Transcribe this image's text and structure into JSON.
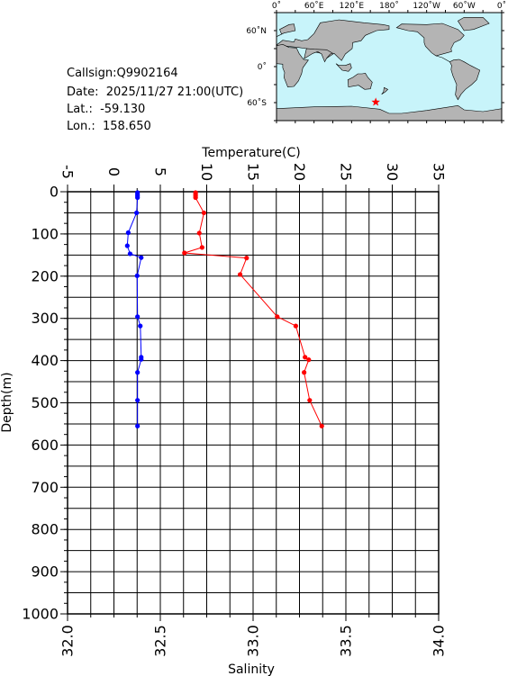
{
  "info": {
    "callsign": "Callsign:Q9902164",
    "date": "Date:  2025/11/27 21:00(UTC)",
    "lat": "Lat.:  -59.130",
    "lon": "Lon.:  158.650"
  },
  "map": {
    "lon_labels": [
      "0˚",
      "60˚E",
      "120˚E",
      "180˚",
      "120˚W",
      "60˚W",
      "0˚"
    ],
    "lat_labels": [
      "60˚N",
      "0˚",
      "60˚S"
    ],
    "ocean_color": "#c8f4fa",
    "land_color": "#b4b4b4",
    "marker": {
      "lon": 158.65,
      "lat": -59.13,
      "symbol": "star",
      "color": "#ff0000"
    }
  },
  "chart_data": {
    "type": "line",
    "xlabel_top": "Temperature(C)",
    "xlabel_bottom": "Salinity",
    "ylabel": "Depth(m)",
    "temperature_axis": {
      "range": [
        -5,
        35
      ],
      "ticks": [
        "-5",
        "0",
        "5",
        "10",
        "15",
        "20",
        "25",
        "30",
        "35"
      ]
    },
    "salinity_axis": {
      "range": [
        32.0,
        34.0
      ],
      "ticks": [
        "32.0",
        "32.5",
        "33.0",
        "33.5",
        "34.0"
      ]
    },
    "depth_axis": {
      "range": [
        0,
        1000
      ],
      "inverted": true,
      "ticks": [
        "0",
        "100",
        "200",
        "300",
        "400",
        "500",
        "600",
        "700",
        "800",
        "900",
        "1000"
      ]
    },
    "grid": true,
    "series": [
      {
        "name": "Temperature",
        "axis": "temperature",
        "color": "#ff0000",
        "points": [
          [
            8.8,
            2
          ],
          [
            8.8,
            6
          ],
          [
            8.8,
            10
          ],
          [
            8.8,
            14
          ],
          [
            9.7,
            50
          ],
          [
            9.2,
            98
          ],
          [
            9.5,
            132
          ],
          [
            7.6,
            145
          ],
          [
            14.3,
            157
          ],
          [
            13.6,
            196
          ],
          [
            17.6,
            296
          ],
          [
            19.6,
            318
          ],
          [
            20.6,
            392
          ],
          [
            21.0,
            398
          ],
          [
            20.5,
            428
          ],
          [
            21.1,
            494
          ],
          [
            22.4,
            555
          ]
        ]
      },
      {
        "name": "Salinity",
        "axis": "salinity",
        "color": "#0000ff",
        "points": [
          [
            32.377,
            2
          ],
          [
            32.377,
            6
          ],
          [
            32.377,
            10
          ],
          [
            32.377,
            14
          ],
          [
            32.372,
            50
          ],
          [
            32.327,
            97
          ],
          [
            32.322,
            128
          ],
          [
            32.337,
            147
          ],
          [
            32.397,
            156
          ],
          [
            32.375,
            199
          ],
          [
            32.377,
            296
          ],
          [
            32.392,
            318
          ],
          [
            32.397,
            392
          ],
          [
            32.397,
            397
          ],
          [
            32.377,
            428
          ],
          [
            32.377,
            494
          ],
          [
            32.377,
            555
          ]
        ]
      }
    ]
  }
}
